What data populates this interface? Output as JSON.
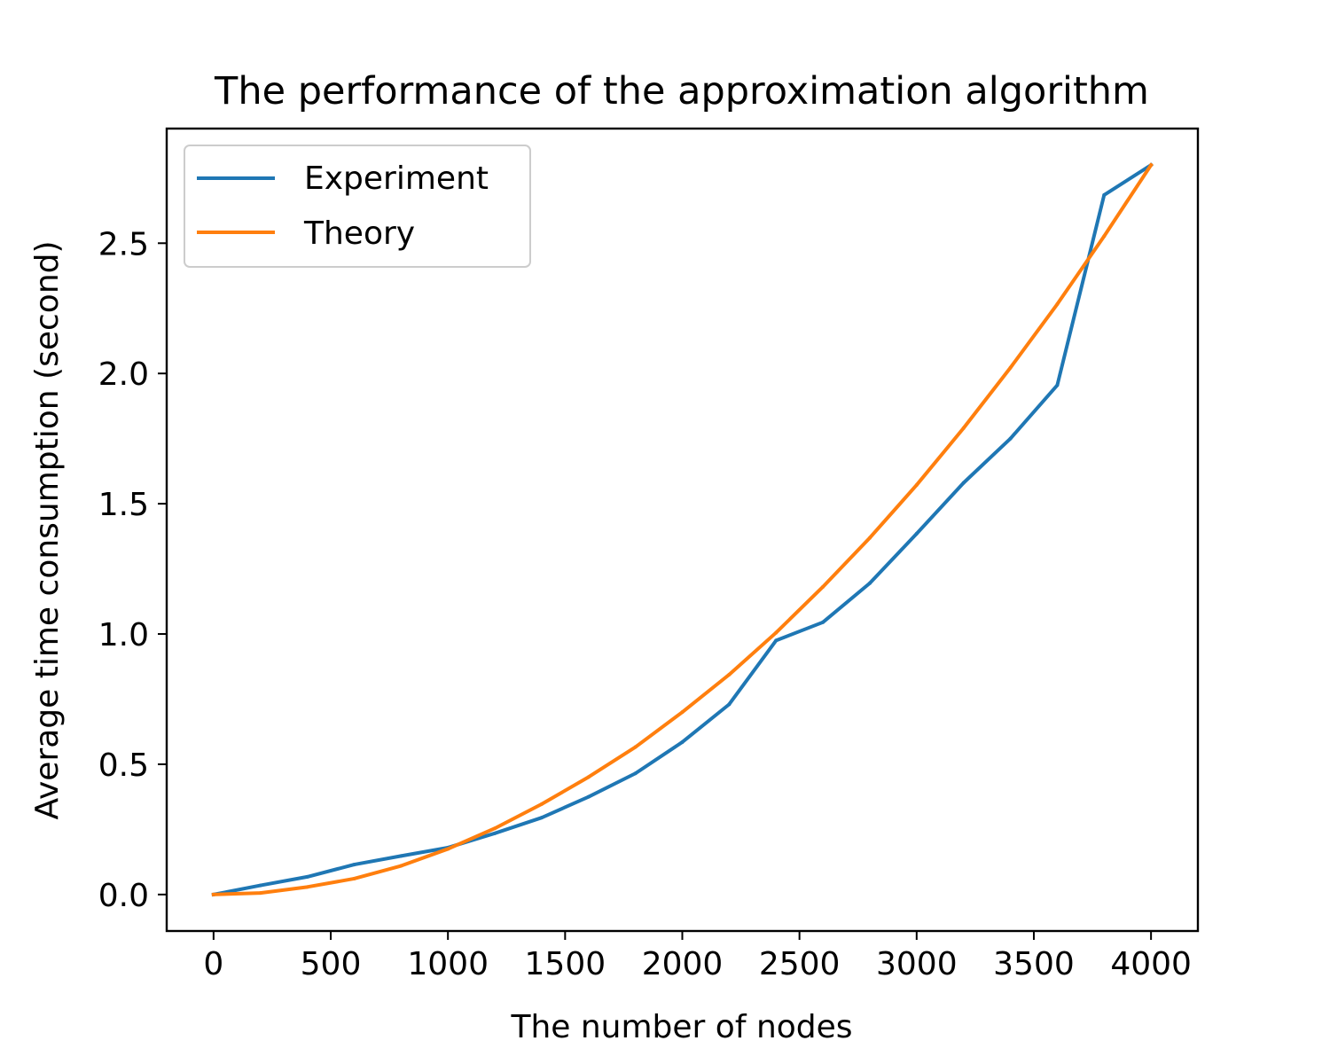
{
  "chart_data": {
    "type": "line",
    "title": "The performance of the approximation algorithm",
    "xlabel": "The number of nodes",
    "ylabel": "Average time consumption (second)",
    "xlim": [
      -200,
      4200
    ],
    "ylim": [
      -0.14,
      2.94
    ],
    "xticks": [
      0,
      500,
      1000,
      1500,
      2000,
      2500,
      3000,
      3500,
      4000
    ],
    "xtick_labels": [
      "0",
      "500",
      "1000",
      "1500",
      "2000",
      "2500",
      "3000",
      "3500",
      "4000"
    ],
    "yticks": [
      0.0,
      0.5,
      1.0,
      1.5,
      2.0,
      2.5
    ],
    "ytick_labels": [
      "0.0",
      "0.5",
      "1.0",
      "1.5",
      "2.0",
      "2.5"
    ],
    "grid": false,
    "legend_position": "top-left",
    "x": [
      0,
      200,
      400,
      600,
      800,
      1000,
      1200,
      1400,
      1600,
      1800,
      2000,
      2200,
      2400,
      2600,
      2800,
      3000,
      3200,
      3400,
      3600,
      3800,
      4000
    ],
    "series": [
      {
        "name": "Experiment",
        "color": "#1f77b4",
        "values": [
          0.0,
          0.035,
          0.068,
          0.115,
          0.148,
          0.18,
          0.235,
          0.295,
          0.375,
          0.465,
          0.585,
          0.73,
          0.975,
          1.045,
          1.195,
          1.385,
          1.58,
          1.75,
          1.955,
          2.685,
          2.8
        ]
      },
      {
        "name": "Theory",
        "color": "#ff7f0e",
        "values": [
          0.0,
          0.006,
          0.029,
          0.061,
          0.11,
          0.175,
          0.254,
          0.347,
          0.451,
          0.566,
          0.7,
          0.844,
          1.005,
          1.181,
          1.369,
          1.572,
          1.79,
          2.022,
          2.266,
          2.527,
          2.8
        ]
      }
    ]
  }
}
